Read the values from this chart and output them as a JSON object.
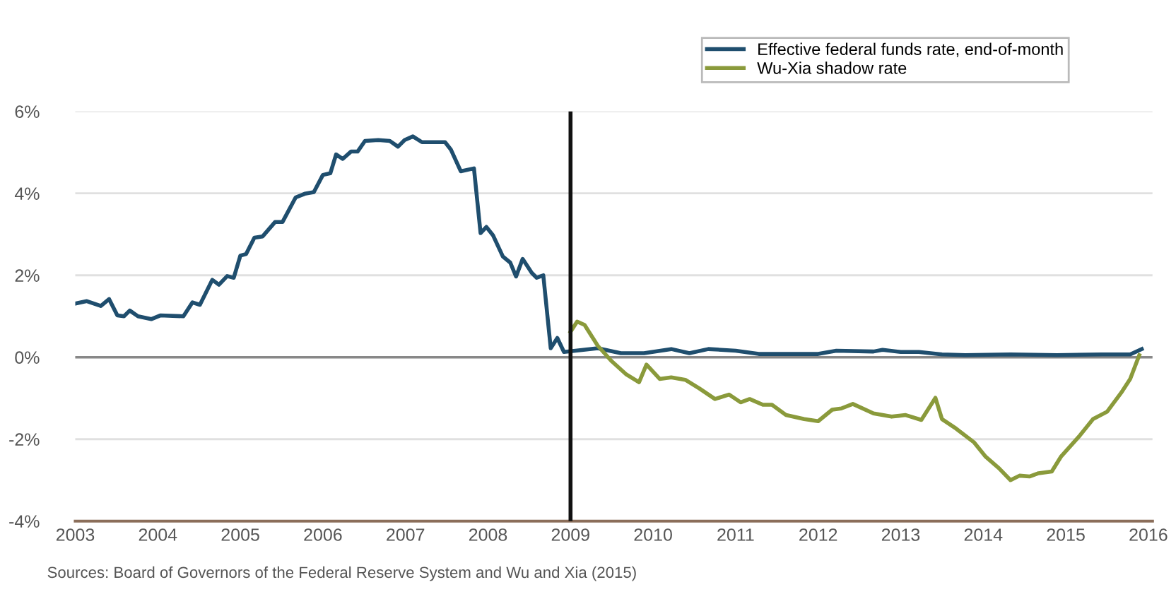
{
  "chart_data": {
    "type": "line",
    "series": [
      {
        "name": "Effective federal funds rate, end-of-month",
        "color": "#1f4e6e",
        "x": [
          2003.0,
          2003.14,
          2003.31,
          2003.41,
          2003.51,
          2003.59,
          2003.66,
          2003.76,
          2003.92,
          2004.03,
          2004.31,
          2004.42,
          2004.51,
          2004.66,
          2004.74,
          2004.84,
          2004.92,
          2005.0,
          2005.07,
          2005.17,
          2005.27,
          2005.42,
          2005.51,
          2005.67,
          2005.78,
          2005.89,
          2006.0,
          2006.09,
          2006.16,
          2006.24,
          2006.34,
          2006.42,
          2006.51,
          2006.67,
          2006.81,
          2006.91,
          2006.99,
          2007.09,
          2007.2,
          2007.48,
          2007.55,
          2007.67,
          2007.83,
          2007.91,
          2007.98,
          2008.06,
          2008.18,
          2008.27,
          2008.34,
          2008.42,
          2008.53,
          2008.59,
          2008.67,
          2008.76,
          2008.84,
          2008.92,
          2009.06,
          2009.33,
          2009.61,
          2009.89,
          2010.22,
          2010.44,
          2010.67,
          2011.0,
          2011.28,
          2011.56,
          2012.0,
          2012.22,
          2012.67,
          2012.78,
          2013.0,
          2013.22,
          2013.5,
          2013.78,
          2014.33,
          2014.89,
          2015.44,
          2015.78,
          2015.92
        ],
        "values": [
          1.31,
          1.37,
          1.25,
          1.42,
          1.02,
          1.0,
          1.14,
          1.0,
          0.93,
          1.02,
          1.0,
          1.34,
          1.28,
          1.89,
          1.77,
          1.98,
          1.94,
          2.48,
          2.52,
          2.92,
          2.95,
          3.3,
          3.3,
          3.9,
          3.99,
          4.03,
          4.45,
          4.49,
          4.95,
          4.84,
          5.02,
          5.02,
          5.28,
          5.3,
          5.28,
          5.14,
          5.3,
          5.39,
          5.25,
          5.25,
          5.07,
          4.54,
          4.61,
          3.03,
          3.18,
          2.98,
          2.46,
          2.31,
          1.97,
          2.4,
          2.06,
          1.94,
          2.0,
          0.22,
          0.47,
          0.13,
          0.16,
          0.22,
          0.1,
          0.1,
          0.2,
          0.1,
          0.2,
          0.16,
          0.08,
          0.08,
          0.08,
          0.16,
          0.14,
          0.18,
          0.13,
          0.13,
          0.07,
          0.05,
          0.07,
          0.05,
          0.07,
          0.07,
          0.2
        ]
      },
      {
        "name": "Wu-Xia shadow rate",
        "color": "#8a9a3b",
        "x": [
          2009.0,
          2009.08,
          2009.17,
          2009.33,
          2009.5,
          2009.67,
          2009.83,
          2009.92,
          2010.08,
          2010.22,
          2010.39,
          2010.56,
          2010.75,
          2010.92,
          2011.06,
          2011.17,
          2011.33,
          2011.44,
          2011.61,
          2011.83,
          2012.0,
          2012.17,
          2012.28,
          2012.42,
          2012.67,
          2012.89,
          2013.06,
          2013.25,
          2013.42,
          2013.5,
          2013.67,
          2013.89,
          2014.03,
          2014.19,
          2014.33,
          2014.44,
          2014.56,
          2014.67,
          2014.83,
          2014.94,
          2015.17,
          2015.33,
          2015.5,
          2015.67,
          2015.78,
          2015.89
        ],
        "values": [
          0.62,
          0.87,
          0.79,
          0.28,
          -0.1,
          -0.41,
          -0.61,
          -0.18,
          -0.53,
          -0.49,
          -0.55,
          -0.76,
          -1.02,
          -0.91,
          -1.1,
          -1.02,
          -1.16,
          -1.16,
          -1.41,
          -1.51,
          -1.56,
          -1.28,
          -1.25,
          -1.14,
          -1.37,
          -1.45,
          -1.41,
          -1.53,
          -0.99,
          -1.51,
          -1.74,
          -2.08,
          -2.43,
          -2.71,
          -3.0,
          -2.89,
          -2.91,
          -2.83,
          -2.79,
          -2.43,
          -1.91,
          -1.51,
          -1.33,
          -0.87,
          -0.53,
          0.05
        ]
      }
    ],
    "xlim": [
      2003,
      2016.05
    ],
    "xticks": [
      2003,
      2004,
      2005,
      2006,
      2007,
      2008,
      2009,
      2010,
      2011,
      2012,
      2013,
      2014,
      2015,
      2016
    ],
    "ylim": [
      -4,
      6
    ],
    "yticks": [
      {
        "value": -4,
        "label": "-4%"
      },
      {
        "value": -2,
        "label": "-2%"
      },
      {
        "value": 0,
        "label": "0%"
      },
      {
        "value": 2,
        "label": "2%"
      },
      {
        "value": 4,
        "label": "4%"
      },
      {
        "value": 6,
        "label": "6%"
      }
    ],
    "ref_lines": [
      {
        "axis": "x",
        "value": 2009,
        "color": "#111111"
      },
      {
        "axis": "y",
        "value": 0,
        "color": "#888888"
      }
    ],
    "grid": "y",
    "legend": "top right",
    "line_style": "solid",
    "annotations": [
      "Sources: Board of Governors of the Federal Reserve System and Wu and Xia (2015)"
    ]
  }
}
